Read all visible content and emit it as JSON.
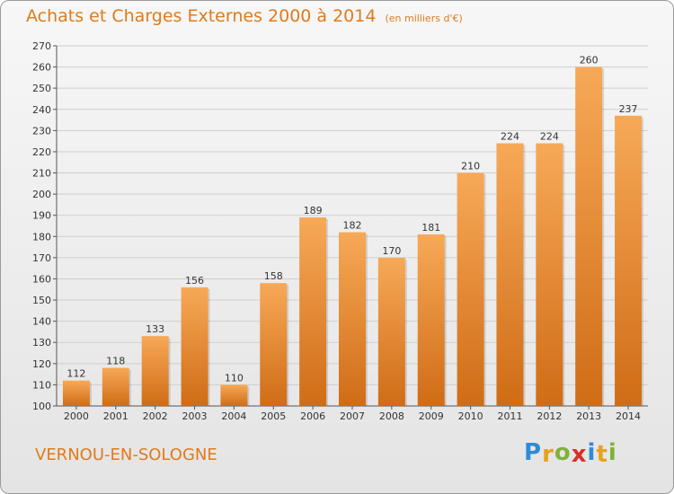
{
  "title": "Achats et Charges Externes 2000 à 2014",
  "subtitle": "(en milliers d'€)",
  "commune": "VERNOU-EN-SOLOGNE",
  "brand": {
    "letters": [
      "P",
      "r",
      "o",
      "x",
      "i",
      "t",
      "i"
    ],
    "colors": [
      "#2e8bd6",
      "#e8a21c",
      "#7fb23a",
      "#d9302a",
      "#2e8bd6",
      "#e8a21c",
      "#7fb23a"
    ]
  },
  "colors": {
    "bar_light": "#f7a957",
    "bar_dark": "#d06c16",
    "grid": "#cfcfcf",
    "accent": "#e07a1a"
  },
  "chart_data": {
    "type": "bar",
    "categories": [
      "2000",
      "2001",
      "2002",
      "2003",
      "2004",
      "2005",
      "2006",
      "2007",
      "2008",
      "2009",
      "2010",
      "2011",
      "2012",
      "2013",
      "2014"
    ],
    "values": [
      112,
      118,
      133,
      156,
      110,
      158,
      189,
      182,
      170,
      181,
      210,
      224,
      224,
      260,
      237
    ],
    "ylim": [
      100,
      270
    ],
    "yticks": [
      100,
      110,
      120,
      130,
      140,
      150,
      160,
      170,
      180,
      190,
      200,
      210,
      220,
      230,
      240,
      250,
      260,
      270
    ],
    "grid": true,
    "xlabel": "",
    "ylabel": ""
  }
}
